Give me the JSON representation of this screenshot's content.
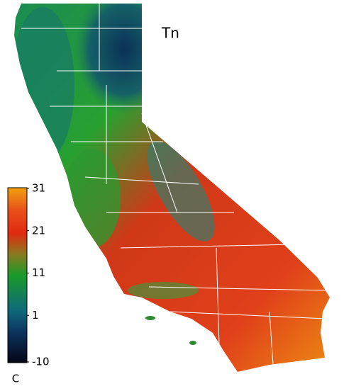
{
  "map": {
    "title": "Tn",
    "colorbar": {
      "lim": [
        -10,
        31
      ],
      "ticks": [
        -10,
        1,
        11,
        21,
        31
      ],
      "unit": "C"
    }
  }
}
